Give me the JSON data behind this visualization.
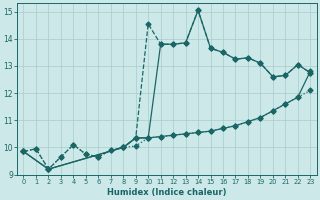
{
  "xlabel": "Humidex (Indice chaleur)",
  "xlim": [
    -0.5,
    23.5
  ],
  "ylim": [
    9,
    15.3
  ],
  "xticks": [
    0,
    1,
    2,
    3,
    4,
    5,
    6,
    7,
    8,
    9,
    10,
    11,
    12,
    13,
    14,
    15,
    16,
    17,
    18,
    19,
    20,
    21,
    22,
    23
  ],
  "yticks": [
    9,
    10,
    11,
    12,
    13,
    14,
    15
  ],
  "bg_color": "#cce8e8",
  "grid_color": "#aacccc",
  "line_color": "#1a6666",
  "line1_x": [
    0,
    1,
    2,
    3,
    4,
    5,
    6,
    7,
    8,
    9,
    10,
    11,
    12,
    13,
    14,
    15,
    16,
    17,
    18,
    19,
    20,
    21,
    22,
    23
  ],
  "line1_y": [
    9.85,
    9.95,
    9.2,
    9.65,
    10.1,
    9.75,
    9.65,
    9.9,
    10.0,
    10.05,
    10.35,
    10.4,
    10.45,
    10.5,
    10.55,
    10.6,
    10.7,
    10.8,
    10.95,
    11.1,
    11.35,
    11.6,
    11.85,
    12.1
  ],
  "line2_x": [
    0,
    2,
    8,
    9,
    10,
    11,
    12,
    13,
    14,
    15,
    16,
    17,
    18,
    19,
    20,
    21,
    22,
    23
  ],
  "line2_y": [
    9.85,
    9.2,
    10.0,
    10.35,
    10.35,
    10.4,
    10.45,
    10.5,
    10.55,
    10.6,
    10.7,
    10.8,
    10.95,
    11.1,
    11.35,
    11.6,
    11.85,
    12.8
  ],
  "line3_x": [
    0,
    1,
    2,
    3,
    4,
    5,
    6,
    7,
    8,
    9,
    10,
    11,
    12,
    13,
    14,
    15,
    16,
    17,
    18,
    19,
    20,
    21,
    22,
    23
  ],
  "line3_y": [
    9.85,
    9.95,
    9.2,
    9.65,
    10.1,
    9.75,
    9.65,
    9.9,
    10.0,
    10.35,
    14.55,
    13.8,
    13.8,
    13.85,
    15.05,
    13.65,
    13.5,
    13.25,
    13.3,
    13.1,
    12.6,
    12.65,
    13.05,
    12.75
  ],
  "line4_x": [
    0,
    2,
    8,
    9,
    10,
    11,
    12,
    13,
    14,
    15,
    16,
    17,
    18,
    19,
    20,
    21,
    22,
    23
  ],
  "line4_y": [
    9.85,
    9.2,
    10.0,
    10.35,
    10.35,
    13.8,
    13.8,
    13.85,
    15.05,
    13.65,
    13.5,
    13.25,
    13.3,
    13.1,
    12.6,
    12.65,
    13.05,
    12.75
  ]
}
